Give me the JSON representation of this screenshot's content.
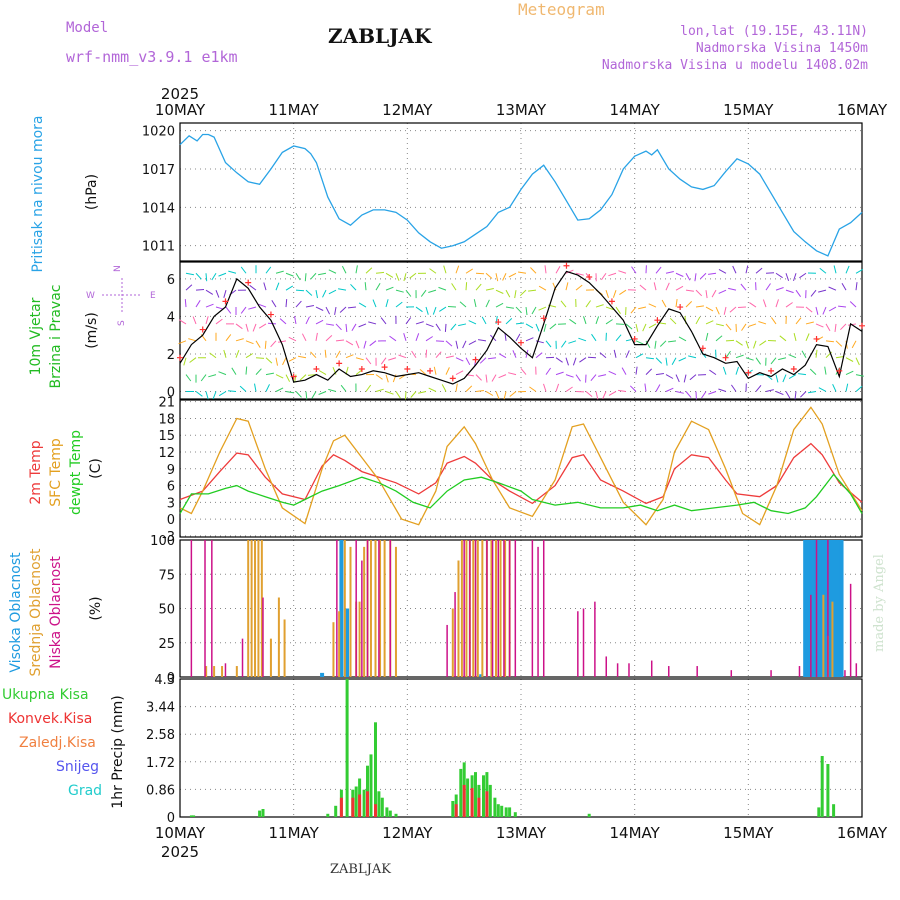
{
  "header": {
    "model_label": "Model",
    "model_name": "wrf-nmm_v3.9.1  e1km",
    "title": "ZABLJAK",
    "meteogram_label": "Meteogram",
    "lonlat": "lon,lat (19.15E, 43.11N)",
    "altitude": "Nadmorska Visina 1450m",
    "model_altitude": "Nadmorska Visina u modelu 1408.02m"
  },
  "footer": {
    "station": "ZABLJAK",
    "credit": "made by Angel"
  },
  "colors": {
    "pressure": "#29a3e6",
    "wind_speed": "#000000",
    "gust_marks": "#ff3030",
    "t2m": "#ee3b3b",
    "tsfc": "#e3a020",
    "dewpt": "#22cc22",
    "cloud_high": "#1e9be0",
    "cloud_mid": "#e0a030",
    "cloud_low": "#cc1188",
    "precip_total": "#33cc33",
    "precip_conv": "#ee3333",
    "precip_frozen": "#f08040",
    "snow": "#5555ee",
    "hail": "#22cccc",
    "header_purple": "#b266d8",
    "header_orange": "#f0b870"
  },
  "chart_data": [
    {
      "type": "line",
      "title": "",
      "ylabel": "Pritisak na nivou mora",
      "unit": "(hPa)",
      "x_year": "2025",
      "x_ticks": [
        "10MAY",
        "11MAY",
        "12MAY",
        "13MAY",
        "14MAY",
        "15MAY",
        "16MAY"
      ],
      "ylim": [
        1009.8,
        1020.6
      ],
      "yticks": [
        1011,
        1014,
        1017,
        1020
      ],
      "series": [
        {
          "name": "Pritisak na nivou mora",
          "x": [
            0,
            0.08,
            0.15,
            0.2,
            0.25,
            0.3,
            0.4,
            0.5,
            0.6,
            0.7,
            0.8,
            0.9,
            1.0,
            1.1,
            1.15,
            1.2,
            1.3,
            1.4,
            1.5,
            1.6,
            1.7,
            1.8,
            1.9,
            2.0,
            2.1,
            2.2,
            2.3,
            2.4,
            2.5,
            2.6,
            2.7,
            2.8,
            2.9,
            3.0,
            3.1,
            3.2,
            3.3,
            3.4,
            3.5,
            3.6,
            3.7,
            3.8,
            3.9,
            4.0,
            4.1,
            4.15,
            4.2,
            4.3,
            4.4,
            4.5,
            4.6,
            4.7,
            4.8,
            4.9,
            5.0,
            5.1,
            5.2,
            5.3,
            5.4,
            5.5,
            5.6,
            5.7,
            5.8,
            5.9,
            6.0
          ],
          "y": [
            1018.9,
            1019.6,
            1019.2,
            1019.7,
            1019.7,
            1019.5,
            1017.5,
            1016.7,
            1016.0,
            1015.8,
            1017.0,
            1018.3,
            1018.8,
            1018.6,
            1018.2,
            1017.5,
            1014.8,
            1013.1,
            1012.6,
            1013.4,
            1013.8,
            1013.8,
            1013.6,
            1013.0,
            1012.0,
            1011.3,
            1010.8,
            1011.0,
            1011.3,
            1011.9,
            1012.5,
            1013.6,
            1014.0,
            1015.4,
            1016.6,
            1017.3,
            1016.0,
            1014.5,
            1013.0,
            1013.1,
            1013.8,
            1015.0,
            1017.0,
            1018.0,
            1018.4,
            1018.1,
            1018.5,
            1017.0,
            1016.2,
            1015.6,
            1015.4,
            1015.7,
            1016.8,
            1017.8,
            1017.4,
            1016.6,
            1015.1,
            1013.6,
            1012.1,
            1011.3,
            1010.6,
            1010.2,
            1012.3,
            1012.8,
            1013.6
          ]
        }
      ]
    },
    {
      "type": "line",
      "title": "",
      "ylabel_1": "10m Vjetar",
      "ylabel_2": "Brzina i Pravac",
      "unit": "(m/s)",
      "direction_key": {
        "n": "N",
        "w": "W",
        "e": "E",
        "s": "S"
      },
      "ylim": [
        -0.4,
        6.9
      ],
      "yticks": [
        0,
        2,
        4,
        6
      ],
      "series": [
        {
          "name": "10m Vjetar",
          "x": [
            0,
            0.1,
            0.2,
            0.3,
            0.4,
            0.5,
            0.6,
            0.7,
            0.8,
            0.9,
            1.0,
            1.1,
            1.2,
            1.3,
            1.4,
            1.5,
            1.6,
            1.7,
            1.8,
            1.9,
            2.0,
            2.1,
            2.2,
            2.3,
            2.4,
            2.5,
            2.6,
            2.7,
            2.8,
            2.9,
            3.0,
            3.1,
            3.2,
            3.3,
            3.4,
            3.5,
            3.6,
            3.7,
            3.8,
            3.9,
            4.0,
            4.1,
            4.2,
            4.3,
            4.4,
            4.5,
            4.6,
            4.7,
            4.8,
            4.9,
            5.0,
            5.1,
            5.2,
            5.3,
            5.4,
            5.5,
            5.6,
            5.7,
            5.8,
            5.9,
            6.0
          ],
          "y": [
            1.5,
            2.5,
            3.0,
            4.0,
            4.5,
            6.0,
            5.5,
            4.5,
            3.8,
            2.5,
            0.5,
            0.6,
            0.9,
            0.6,
            1.2,
            0.8,
            0.9,
            1.1,
            1.0,
            0.8,
            0.9,
            1.0,
            0.8,
            0.6,
            0.4,
            0.7,
            1.4,
            2.2,
            3.4,
            2.9,
            2.3,
            1.8,
            3.6,
            5.5,
            6.4,
            6.2,
            5.8,
            5.2,
            4.5,
            3.8,
            2.5,
            2.5,
            3.5,
            4.4,
            4.2,
            3.2,
            2.0,
            1.8,
            1.5,
            1.6,
            0.7,
            1.0,
            0.8,
            1.2,
            0.9,
            1.4,
            2.5,
            2.4,
            0.8,
            3.6,
            3.2
          ]
        }
      ]
    },
    {
      "type": "line",
      "title": "",
      "ylabels": [
        "2m Temp",
        "SFC Temp",
        "dewpt Temp"
      ],
      "unit": "(C)",
      "ylim": [
        -3.2,
        21.3
      ],
      "yticks": [
        -3,
        0,
        3,
        6,
        9,
        12,
        15,
        18,
        21
      ],
      "series": [
        {
          "name": "2m Temp",
          "x": [
            0,
            0.2,
            0.35,
            0.5,
            0.6,
            0.75,
            0.9,
            1.1,
            1.25,
            1.35,
            1.45,
            1.6,
            1.75,
            1.9,
            2.1,
            2.25,
            2.35,
            2.5,
            2.6,
            2.75,
            2.9,
            3.1,
            3.3,
            3.45,
            3.55,
            3.7,
            3.9,
            4.1,
            4.25,
            4.35,
            4.5,
            4.65,
            4.8,
            4.9,
            5.1,
            5.25,
            5.4,
            5.55,
            5.65,
            5.8,
            6.0
          ],
          "y": [
            3.5,
            5.0,
            8.5,
            11.8,
            11.5,
            7.5,
            4.5,
            3.5,
            9.5,
            11.5,
            10.5,
            8.5,
            7.5,
            6.5,
            4.5,
            6.5,
            10.0,
            11.2,
            10.0,
            7.0,
            5.0,
            2.8,
            6.0,
            11.0,
            11.5,
            7.0,
            5.0,
            2.8,
            4.0,
            9.0,
            11.5,
            11.0,
            7.0,
            4.5,
            4.0,
            6.0,
            11.0,
            13.5,
            11.5,
            6.5,
            3.0
          ]
        },
        {
          "name": "SFC Temp",
          "x": [
            0,
            0.1,
            0.2,
            0.35,
            0.5,
            0.6,
            0.75,
            0.9,
            1.1,
            1.25,
            1.35,
            1.45,
            1.6,
            1.75,
            1.95,
            2.1,
            2.25,
            2.35,
            2.5,
            2.6,
            2.75,
            2.9,
            3.1,
            3.3,
            3.45,
            3.55,
            3.7,
            3.9,
            4.1,
            4.25,
            4.35,
            4.5,
            4.65,
            4.8,
            4.95,
            5.1,
            5.25,
            5.4,
            5.55,
            5.65,
            5.8,
            6.0
          ],
          "y": [
            2.0,
            1.0,
            5.0,
            12.0,
            18.0,
            17.5,
            9.0,
            2.0,
            -0.8,
            9.0,
            14.0,
            15.0,
            11.0,
            7.0,
            0.0,
            -1.0,
            5.0,
            13.0,
            16.5,
            13.5,
            7.0,
            2.0,
            0.5,
            7.0,
            16.5,
            17.0,
            11.0,
            3.0,
            -1.0,
            3.5,
            12.0,
            17.5,
            16.0,
            9.0,
            1.0,
            -1.0,
            6.0,
            16.0,
            20.0,
            17.0,
            8.0,
            1.5
          ]
        },
        {
          "name": "dewpt Temp",
          "x": [
            0,
            0.1,
            0.25,
            0.4,
            0.5,
            0.6,
            0.75,
            0.9,
            1.0,
            1.1,
            1.25,
            1.4,
            1.6,
            1.75,
            1.9,
            2.05,
            2.2,
            2.35,
            2.5,
            2.65,
            2.8,
            3.0,
            3.1,
            3.3,
            3.5,
            3.7,
            3.9,
            4.05,
            4.2,
            4.35,
            4.5,
            4.7,
            4.9,
            5.05,
            5.2,
            5.35,
            5.5,
            5.6,
            5.75,
            5.9,
            6.0
          ],
          "y": [
            1.0,
            4.5,
            4.5,
            5.5,
            6.0,
            5.0,
            4.0,
            3.0,
            2.5,
            3.5,
            5.0,
            6.0,
            7.5,
            6.5,
            5.0,
            3.0,
            2.0,
            5.0,
            7.0,
            7.5,
            6.5,
            5.0,
            3.5,
            2.5,
            3.0,
            2.0,
            2.0,
            2.5,
            1.5,
            2.5,
            1.5,
            2.0,
            2.5,
            3.0,
            1.5,
            1.0,
            2.0,
            4.0,
            8.0,
            4.5,
            1.0
          ]
        }
      ]
    },
    {
      "type": "bar",
      "title": "",
      "ylabels": [
        "Visoka Oblacnost",
        "Srednja Oblacnost",
        "Niska Oblacnost"
      ],
      "unit": "(%)",
      "ylim": [
        0,
        100
      ],
      "yticks": [
        0,
        25,
        50,
        75,
        100
      ],
      "series": [
        {
          "name": "Visoka Oblacnost",
          "x": [
            1.25,
            1.42,
            1.47,
            2.65,
            5.5,
            5.52,
            5.54,
            5.56,
            5.58,
            5.6,
            5.62,
            5.64,
            5.66,
            5.68,
            5.7,
            5.72,
            5.74,
            5.76,
            5.78,
            5.8,
            5.82
          ],
          "y": [
            3,
            100,
            50,
            2,
            100,
            100,
            100,
            100,
            100,
            100,
            100,
            100,
            100,
            100,
            100,
            100,
            100,
            100,
            100,
            100,
            100
          ]
        },
        {
          "name": "Srednja Oblacnost",
          "x": [
            0.23,
            0.3,
            0.37,
            0.5,
            0.6,
            0.63,
            0.66,
            0.69,
            0.72,
            0.8,
            0.87,
            0.92,
            1.35,
            1.4,
            1.45,
            1.5,
            1.55,
            1.58,
            1.62,
            1.65,
            1.68,
            1.72,
            1.76,
            1.8,
            1.85,
            1.9,
            2.4,
            2.45,
            2.48,
            2.52,
            2.55,
            2.58,
            2.62,
            2.66,
            2.7,
            2.74,
            2.78,
            2.82,
            2.86,
            2.9,
            5.66,
            5.7,
            5.74
          ],
          "y": [
            8,
            8,
            8,
            8,
            100,
            100,
            100,
            100,
            100,
            28,
            58,
            42,
            40,
            48,
            100,
            95,
            55,
            55,
            95,
            100,
            100,
            100,
            100,
            100,
            100,
            95,
            50,
            85,
            100,
            100,
            100,
            100,
            100,
            100,
            100,
            100,
            100,
            100,
            100,
            100,
            60,
            30,
            55
          ]
        },
        {
          "name": "Niska Oblacnost",
          "x": [
            0.1,
            0.22,
            0.28,
            0.4,
            0.55,
            0.73,
            1.38,
            1.55,
            1.6,
            1.65,
            1.75,
            1.85,
            2.35,
            2.42,
            2.5,
            2.55,
            2.6,
            2.7,
            2.75,
            2.8,
            2.85,
            2.9,
            2.95,
            3.1,
            3.15,
            3.2,
            3.5,
            3.55,
            3.65,
            3.75,
            3.85,
            3.95,
            4.15,
            4.3,
            4.55,
            4.85,
            5.2,
            5.45,
            5.55,
            5.6,
            5.7,
            5.85,
            5.9,
            5.95
          ],
          "y": [
            100,
            100,
            100,
            10,
            28,
            58,
            100,
            100,
            85,
            100,
            100,
            100,
            38,
            62,
            100,
            100,
            100,
            100,
            100,
            100,
            100,
            100,
            100,
            100,
            95,
            100,
            48,
            50,
            55,
            15,
            10,
            10,
            12,
            8,
            8,
            5,
            5,
            8,
            60,
            100,
            100,
            5,
            68,
            10
          ]
        }
      ]
    },
    {
      "type": "bar",
      "title": "",
      "ylabel": "1hr Precip",
      "unit": "(mm)",
      "legend": [
        "Ukupna Kisa",
        "Konvek.Kisa",
        "Zaledj.Kisa",
        "Snijeg",
        "Grad"
      ],
      "ylim": [
        0,
        4.3
      ],
      "yticks": [
        0,
        0.86,
        1.72,
        2.58,
        3.44,
        4.3
      ],
      "ytick_labels": [
        "0",
        "0.86",
        "1.72",
        "2.58",
        "3.44",
        "4.3"
      ],
      "series": [
        {
          "name": "Ukupna Kisa",
          "x": [
            0.1,
            0.12,
            0.7,
            0.73,
            1.3,
            1.37,
            1.42,
            1.47,
            1.52,
            1.55,
            1.58,
            1.62,
            1.65,
            1.68,
            1.72,
            1.75,
            1.78,
            1.82,
            1.85,
            1.9,
            2.4,
            2.43,
            2.47,
            2.5,
            2.53,
            2.57,
            2.6,
            2.63,
            2.67,
            2.7,
            2.73,
            2.77,
            2.8,
            2.83,
            2.87,
            2.9,
            2.95,
            3.6,
            5.62,
            5.65,
            5.7,
            5.75
          ],
          "y": [
            0.05,
            0.05,
            0.2,
            0.25,
            0.1,
            0.35,
            0.85,
            4.3,
            0.85,
            0.95,
            1.2,
            0.85,
            1.6,
            1.95,
            2.95,
            0.8,
            0.6,
            0.3,
            0.2,
            0.1,
            0.5,
            0.7,
            1.5,
            1.7,
            1.2,
            1.3,
            1.4,
            1.0,
            1.3,
            1.4,
            1.0,
            0.6,
            0.4,
            0.35,
            0.3,
            0.3,
            0.15,
            0.1,
            0.3,
            1.9,
            1.65,
            0.4
          ]
        },
        {
          "name": "Konvek.Kisa",
          "x": [
            1.42,
            1.52,
            1.58,
            1.65,
            1.72,
            2.43,
            2.5,
            2.57,
            2.63,
            2.7
          ],
          "y": [
            0.6,
            0.6,
            0.7,
            0.8,
            0.4,
            0.4,
            1.0,
            0.9,
            0.6,
            0.8
          ]
        }
      ]
    }
  ]
}
